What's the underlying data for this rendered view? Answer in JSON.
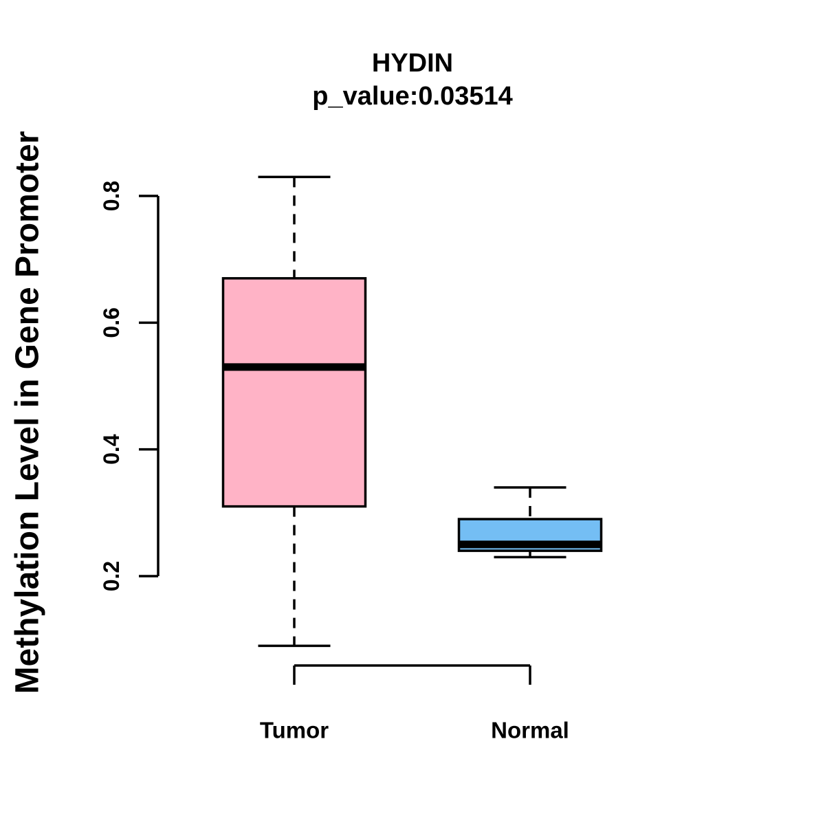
{
  "chart_data": {
    "type": "boxplot",
    "title": "HYDIN",
    "subtitle": "p_value:0.03514",
    "p_value": 0.03514,
    "gene": "HYDIN",
    "xlabel": "",
    "ylabel": "Methylation Level in Gene Promoter",
    "ylim": [
      0.05,
      0.88
    ],
    "yticks": [
      "0.2",
      "0.4",
      "0.6",
      "0.8"
    ],
    "ytick_values": [
      0.2,
      0.4,
      0.6,
      0.8
    ],
    "grid": false,
    "legend": false,
    "groups": [
      {
        "label": "Tumor",
        "fill_color": "#FFB3C6",
        "whisker_low": 0.09,
        "q1": 0.31,
        "median": 0.53,
        "q3": 0.67,
        "whisker_high": 0.83
      },
      {
        "label": "Normal",
        "fill_color": "#74BEF4",
        "whisker_low": 0.23,
        "q1": 0.24,
        "median": 0.25,
        "q3": 0.29,
        "whisker_high": 0.34
      }
    ]
  },
  "colors": {
    "background": "#FFFFFF",
    "stroke": "#000000",
    "text": "#000000",
    "tumor_fill": "#FFB3C6",
    "normal_fill": "#74BEF4"
  }
}
